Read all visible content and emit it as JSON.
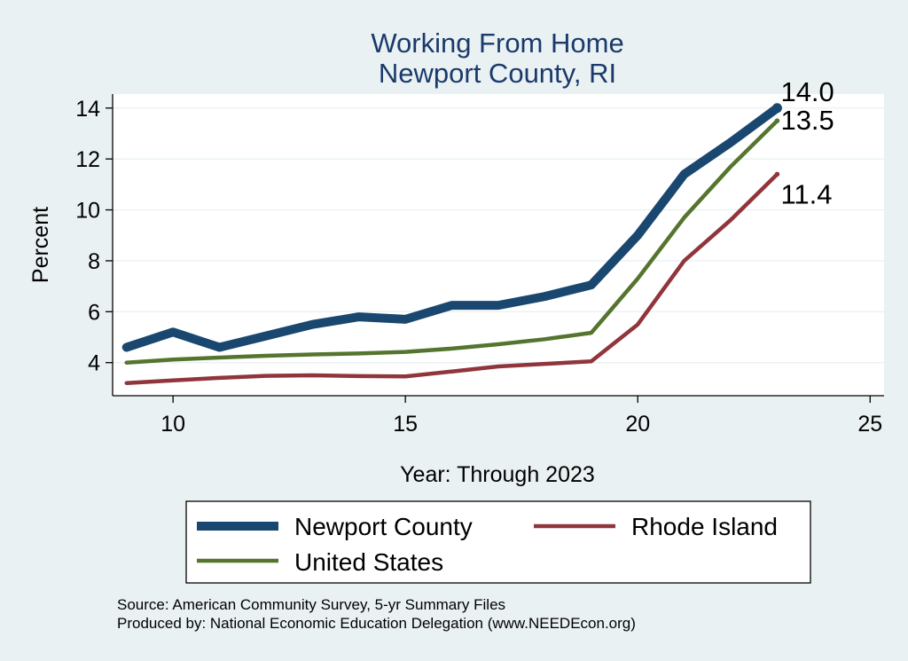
{
  "chart_data": {
    "type": "line",
    "title": "Working From Home",
    "subtitle": "Newport County, RI",
    "xlabel": "Year: Through 2023",
    "ylabel": "Percent",
    "xlim": [
      8.7,
      25.3
    ],
    "ylim": [
      2.7,
      14.55
    ],
    "xticks": [
      10,
      15,
      20,
      25
    ],
    "yticks": [
      4,
      6,
      8,
      10,
      12,
      14
    ],
    "grid": true,
    "legend_position": "bottom",
    "series": [
      {
        "name": "Newport County",
        "color": "#1a476f",
        "width": "thick",
        "x": [
          9,
          10,
          11,
          12,
          13,
          14,
          15,
          16,
          17,
          18,
          19,
          20,
          21,
          22,
          23
        ],
        "y": [
          4.6,
          5.2,
          4.6,
          5.05,
          5.5,
          5.8,
          5.7,
          6.25,
          6.25,
          6.6,
          7.05,
          9.0,
          11.4,
          12.65,
          14.0
        ],
        "end_label": "14.0"
      },
      {
        "name": "Rhode Island",
        "color": "#90353b",
        "width": "medium",
        "x": [
          9,
          10,
          11,
          12,
          13,
          14,
          15,
          16,
          17,
          18,
          19,
          20,
          21,
          22,
          23
        ],
        "y": [
          3.2,
          3.3,
          3.4,
          3.48,
          3.5,
          3.47,
          3.46,
          3.65,
          3.85,
          3.95,
          4.05,
          5.5,
          8.0,
          9.6,
          11.4
        ],
        "end_label": "11.4"
      },
      {
        "name": "United States",
        "color": "#55752f",
        "width": "medium",
        "x": [
          9,
          10,
          11,
          12,
          13,
          14,
          15,
          16,
          17,
          18,
          19,
          20,
          21,
          22,
          23
        ],
        "y": [
          4.0,
          4.12,
          4.2,
          4.27,
          4.32,
          4.36,
          4.42,
          4.55,
          4.72,
          4.92,
          5.17,
          7.3,
          9.7,
          11.7,
          13.5
        ],
        "end_label": "13.5"
      }
    ]
  },
  "legend": {
    "items": [
      {
        "label": "Newport County",
        "color": "#1a476f",
        "width": "thick"
      },
      {
        "label": "Rhode Island",
        "color": "#90353b",
        "width": "medium"
      },
      {
        "label": "United States",
        "color": "#55752f",
        "width": "medium"
      }
    ]
  },
  "notes": {
    "source": "Source: American Community Survey, 5-yr Summary Files",
    "produced_by": "Produced by: National Economic Education Delegation (www.NEEDEcon.org)"
  },
  "colors": {
    "background": "#eaf1f3",
    "plot_background": "#ffffff",
    "title": "#1a3a6b",
    "grid": "#eaf1f3"
  }
}
